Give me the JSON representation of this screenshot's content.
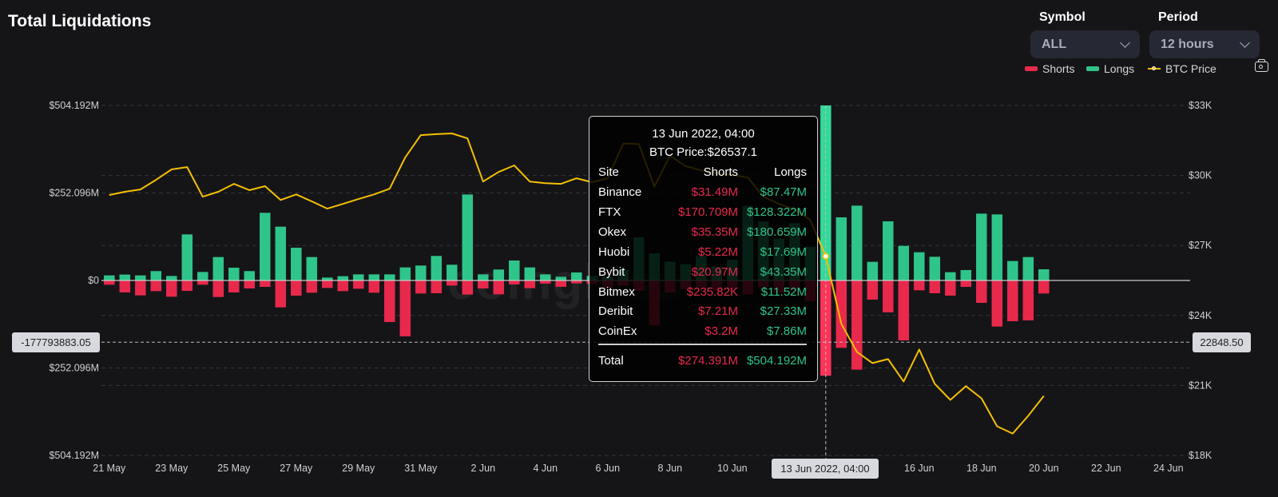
{
  "header": {
    "title": "Total Liquidations"
  },
  "controls": {
    "symbol": {
      "label": "Symbol",
      "value": "ALL"
    },
    "period": {
      "label": "Period",
      "value": "12 hours"
    }
  },
  "legend": [
    {
      "label": "Shorts",
      "color": "#e8294c"
    },
    {
      "label": "Longs",
      "color": "#2fc48a"
    },
    {
      "label": "BTC Price",
      "color": "#f5c000"
    }
  ],
  "watermark": "coinglass",
  "crosshair": {
    "x_label": "13 Jun 2022, 04:00",
    "left_label": "-177793883.05",
    "left_value": -177.79388305,
    "right_label": "22848.50",
    "right_value": 22848.5,
    "bar_index": 46
  },
  "tooltip": {
    "title": "13 Jun 2022, 04:00",
    "price_line": "BTC Price:$26537.1",
    "headers": {
      "site": "Site",
      "shorts": "Shorts",
      "longs": "Longs"
    },
    "rows": [
      {
        "site": "Binance",
        "shorts": "$31.49M",
        "longs": "$87.47M"
      },
      {
        "site": "FTX",
        "shorts": "$170.709M",
        "longs": "$128.322M"
      },
      {
        "site": "Okex",
        "shorts": "$35.35M",
        "longs": "$180.659M"
      },
      {
        "site": "Huobi",
        "shorts": "$5.22M",
        "longs": "$17.69M"
      },
      {
        "site": "Bybit",
        "shorts": "$20.97M",
        "longs": "$43.35M"
      },
      {
        "site": "Bitmex",
        "shorts": "$235.82K",
        "longs": "$11.52M"
      },
      {
        "site": "Deribit",
        "shorts": "$7.21M",
        "longs": "$27.33M"
      },
      {
        "site": "CoinEx",
        "shorts": "$3.2M",
        "longs": "$7.86M"
      }
    ],
    "total": {
      "site": "Total",
      "shorts": "$274.391M",
      "longs": "$504.192M"
    }
  },
  "chart_data": {
    "type": "bar+line",
    "title": "Total Liquidations",
    "grid": true,
    "legend_placement": "top-right",
    "x": [
      "2022-05-21 04:00",
      "2022-05-21 16:00",
      "2022-05-22 04:00",
      "2022-05-22 16:00",
      "2022-05-23 04:00",
      "2022-05-23 16:00",
      "2022-05-24 04:00",
      "2022-05-24 16:00",
      "2022-05-25 04:00",
      "2022-05-25 16:00",
      "2022-05-26 04:00",
      "2022-05-26 16:00",
      "2022-05-27 04:00",
      "2022-05-27 16:00",
      "2022-05-28 04:00",
      "2022-05-28 16:00",
      "2022-05-29 04:00",
      "2022-05-29 16:00",
      "2022-05-30 04:00",
      "2022-05-30 16:00",
      "2022-05-31 04:00",
      "2022-05-31 16:00",
      "2022-06-01 04:00",
      "2022-06-01 16:00",
      "2022-06-02 04:00",
      "2022-06-02 16:00",
      "2022-06-03 04:00",
      "2022-06-03 16:00",
      "2022-06-04 04:00",
      "2022-06-04 16:00",
      "2022-06-05 04:00",
      "2022-06-05 16:00",
      "2022-06-06 04:00",
      "2022-06-06 16:00",
      "2022-06-07 04:00",
      "2022-06-07 16:00",
      "2022-06-08 04:00",
      "2022-06-08 16:00",
      "2022-06-09 04:00",
      "2022-06-09 16:00",
      "2022-06-10 04:00",
      "2022-06-10 16:00",
      "2022-06-11 04:00",
      "2022-06-11 16:00",
      "2022-06-12 04:00",
      "2022-06-12 16:00",
      "2022-06-13 04:00",
      "2022-06-13 16:00",
      "2022-06-14 04:00",
      "2022-06-14 16:00",
      "2022-06-15 04:00",
      "2022-06-15 16:00",
      "2022-06-16 04:00",
      "2022-06-16 16:00",
      "2022-06-17 04:00",
      "2022-06-17 16:00",
      "2022-06-18 04:00",
      "2022-06-18 16:00",
      "2022-06-19 04:00",
      "2022-06-19 16:00",
      "2022-06-20 04:00"
    ],
    "series": [
      {
        "name": "Longs",
        "axis": "left",
        "unit": "$M",
        "color": "#2fc48a",
        "values": [
          14.6,
          17,
          14.6,
          27,
          13,
          132.7,
          24.5,
          67.5,
          36.8,
          27,
          195,
          155,
          94.4,
          67.5,
          8.4,
          12.3,
          17.6,
          17.6,
          17.6,
          37.6,
          43,
          70.6,
          45.3,
          247.8,
          17.6,
          31.5,
          57.5,
          37.6,
          17.6,
          10.7,
          23,
          13,
          10,
          30,
          124,
          78,
          54,
          47,
          70,
          40,
          60,
          215,
          170,
          121,
          165,
          97,
          504.192,
          181.9,
          215.6,
          53.7,
          170.4,
          99.7,
          81.3,
          68.3,
          23.8,
          30,
          192.6,
          190.3,
          56,
          67.5,
          32.2
        ]
      },
      {
        "name": "Shorts",
        "axis": "left",
        "unit": "$M",
        "direction": "negative",
        "color": "#e8294c",
        "values": [
          12.3,
          34.5,
          43,
          30.7,
          46.8,
          30,
          12.3,
          47.6,
          34.5,
          23,
          18.4,
          77.5,
          43.7,
          35.3,
          21.5,
          30.7,
          23.8,
          35.3,
          119.7,
          161,
          37.6,
          36.8,
          14.6,
          40.7,
          23,
          39.9,
          11.5,
          22.3,
          9.2,
          18.4,
          8.4,
          10,
          20,
          15,
          30,
          130,
          35,
          25,
          20,
          30,
          25,
          40,
          20,
          35,
          30,
          60,
          274.391,
          194,
          257,
          55.2,
          92,
          172.7,
          28.4,
          36.8,
          43.7,
          18.4,
          64.5,
          132.8,
          117.4,
          115,
          37.6
        ]
      },
      {
        "name": "BTC Price",
        "axis": "right",
        "unit": "$",
        "color": "#f5c000",
        "values": [
          29160,
          29300,
          29400,
          29810,
          30260,
          30360,
          29090,
          29300,
          29640,
          29370,
          29540,
          28950,
          29190,
          28890,
          28580,
          28780,
          28990,
          29190,
          29430,
          30770,
          31730,
          31770,
          31800,
          31590,
          29740,
          30150,
          30430,
          29740,
          29670,
          29640,
          29880,
          29710,
          29880,
          31370,
          31350,
          29520,
          30850,
          30400,
          30220,
          30090,
          30020,
          29910,
          29090,
          28780,
          28540,
          28100,
          26537.1,
          23640,
          22440,
          21960,
          22130,
          21170,
          22540,
          21070,
          20380,
          20970,
          20450,
          19250,
          18940,
          19700,
          20550
        ]
      }
    ],
    "left_axis": {
      "range": [
        -504.192,
        504.192
      ],
      "ticks": [
        {
          "value": 504.192,
          "label": "$504.192M"
        },
        {
          "value": 252.096,
          "label": "$252.096M"
        },
        {
          "value": 0,
          "label": "$0"
        },
        {
          "value": -252.096,
          "label": "$252.096M"
        },
        {
          "value": -504.192,
          "label": "$504.192M"
        }
      ]
    },
    "right_axis": {
      "range": [
        18000,
        33000
      ],
      "ticks": [
        {
          "value": 33000,
          "label": "$33K"
        },
        {
          "value": 30000,
          "label": "$30K"
        },
        {
          "value": 27000,
          "label": "$27K"
        },
        {
          "value": 24000,
          "label": "$24K"
        },
        {
          "value": 21000,
          "label": "$21K"
        },
        {
          "value": 18000,
          "label": "$18K"
        }
      ]
    },
    "x_ticks": [
      {
        "date": "2022-05-21",
        "label": "21 May"
      },
      {
        "date": "2022-05-23",
        "label": "23 May"
      },
      {
        "date": "2022-05-25",
        "label": "25 May"
      },
      {
        "date": "2022-05-27",
        "label": "27 May"
      },
      {
        "date": "2022-05-29",
        "label": "29 May"
      },
      {
        "date": "2022-05-31",
        "label": "31 May"
      },
      {
        "date": "2022-06-02",
        "label": "2 Jun"
      },
      {
        "date": "2022-06-04",
        "label": "4 Jun"
      },
      {
        "date": "2022-06-06",
        "label": "6 Jun"
      },
      {
        "date": "2022-06-08",
        "label": "8 Jun"
      },
      {
        "date": "2022-06-10",
        "label": "10 Jun"
      },
      {
        "date": "2022-06-16",
        "label": "16 Jun"
      },
      {
        "date": "2022-06-18",
        "label": "18 Jun"
      },
      {
        "date": "2022-06-20",
        "label": "20 Jun"
      },
      {
        "date": "2022-06-22",
        "label": "22 Jun"
      },
      {
        "date": "2022-06-24",
        "label": "24 Jun"
      }
    ]
  }
}
